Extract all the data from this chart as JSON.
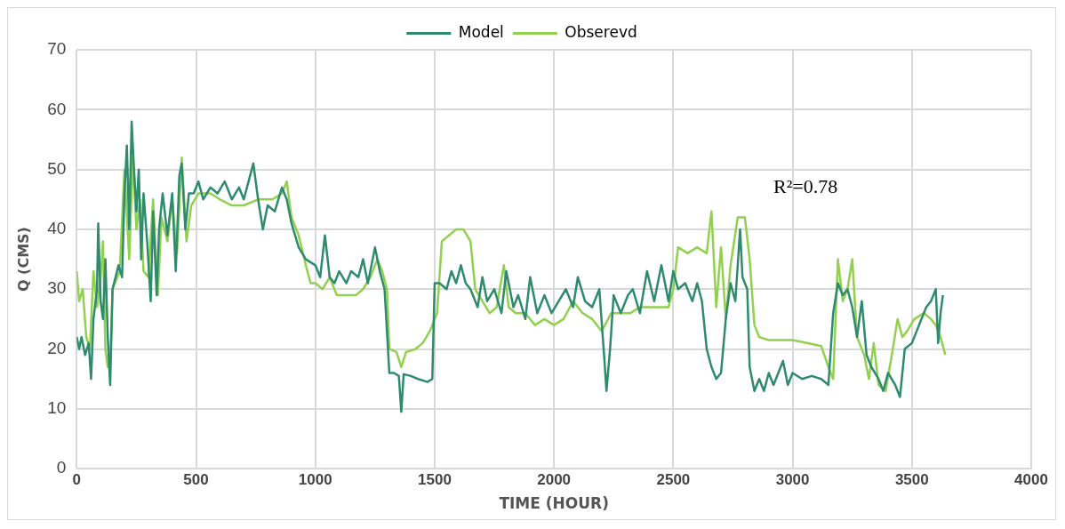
{
  "chart_data": {
    "type": "line",
    "xlabel": "TIME (HOUR)",
    "ylabel": "Q (CMS)",
    "xlim": [
      0,
      4000
    ],
    "xticks": [
      0,
      500,
      1000,
      1500,
      2000,
      2500,
      3000,
      3500,
      4000
    ],
    "ylim": [
      0,
      70
    ],
    "yticks": [
      0,
      10,
      20,
      30,
      40,
      50,
      60,
      70
    ],
    "grid": true,
    "legend": "top",
    "marker": "none",
    "line_style": "solid",
    "annotations": [
      "R²=0.78"
    ],
    "series": [
      {
        "name": "Model",
        "color": "#2e8b6e",
        "x": [
          0,
          10,
          20,
          35,
          50,
          60,
          70,
          85,
          90,
          100,
          110,
          120,
          130,
          140,
          150,
          175,
          190,
          200,
          210,
          220,
          230,
          240,
          250,
          260,
          270,
          280,
          295,
          310,
          320,
          335,
          345,
          360,
          380,
          400,
          415,
          430,
          440,
          455,
          470,
          490,
          510,
          530,
          560,
          590,
          620,
          650,
          680,
          700,
          720,
          740,
          760,
          780,
          800,
          830,
          860,
          880,
          900,
          930,
          960,
          1000,
          1020,
          1040,
          1060,
          1080,
          1100,
          1130,
          1150,
          1180,
          1200,
          1220,
          1250,
          1270,
          1290,
          1310,
          1330,
          1350,
          1360,
          1370,
          1400,
          1430,
          1470,
          1490,
          1500,
          1520,
          1550,
          1570,
          1590,
          1610,
          1630,
          1650,
          1680,
          1700,
          1720,
          1750,
          1780,
          1800,
          1830,
          1850,
          1880,
          1900,
          1930,
          1960,
          1990,
          2020,
          2050,
          2080,
          2100,
          2130,
          2160,
          2190,
          2210,
          2220,
          2235,
          2250,
          2280,
          2310,
          2330,
          2360,
          2390,
          2420,
          2450,
          2480,
          2500,
          2520,
          2550,
          2580,
          2600,
          2620,
          2640,
          2660,
          2680,
          2700,
          2720,
          2740,
          2760,
          2780,
          2790,
          2810,
          2820,
          2840,
          2860,
          2880,
          2900,
          2920,
          2940,
          2960,
          2980,
          3000,
          3040,
          3080,
          3120,
          3150,
          3170,
          3190,
          3210,
          3230,
          3250,
          3270,
          3290,
          3310,
          3330,
          3360,
          3380,
          3400,
          3430,
          3450,
          3470,
          3500,
          3530,
          3560,
          3580,
          3600,
          3610,
          3620,
          3630
        ],
        "values": [
          22,
          20,
          22,
          19,
          21,
          15,
          25,
          30,
          41,
          28,
          25,
          35,
          22,
          14,
          30,
          34,
          32,
          46,
          54,
          40,
          58,
          50,
          43,
          50,
          35,
          46,
          38,
          28,
          43,
          29,
          40,
          46,
          39,
          46,
          33,
          49,
          51,
          40,
          46,
          46,
          48,
          45,
          47,
          46,
          48,
          45,
          47,
          45,
          48,
          51,
          45,
          40,
          44,
          43,
          47,
          45,
          41,
          37,
          35,
          34,
          32,
          39,
          32,
          31,
          33,
          31,
          33,
          32,
          35,
          31,
          37,
          33,
          30,
          16,
          16,
          15.5,
          9.5,
          15.8,
          15.5,
          15,
          14.5,
          15,
          31,
          31,
          30,
          33,
          31,
          34,
          31,
          30,
          27,
          32,
          28,
          30,
          26,
          33,
          27,
          29,
          25,
          32,
          26,
          29,
          26,
          28,
          30,
          27,
          32,
          28,
          27,
          30,
          19,
          13,
          20,
          29,
          26,
          29,
          30,
          26,
          33,
          28,
          34,
          28,
          33,
          30,
          31,
          28,
          31,
          28,
          20,
          17,
          15,
          16,
          25,
          31,
          28,
          40,
          32,
          30,
          17,
          13,
          15,
          13,
          16,
          14,
          16,
          18,
          14,
          16,
          15,
          15.5,
          15,
          14,
          26,
          31,
          29,
          30,
          27,
          22,
          28,
          19,
          17,
          15,
          13,
          16,
          14,
          12,
          20,
          21,
          24,
          27,
          28,
          30,
          21,
          26,
          29
        ]
      },
      {
        "name": "Obserevd",
        "color": "#92d050",
        "x": [
          0,
          10,
          25,
          40,
          55,
          70,
          85,
          100,
          110,
          120,
          130,
          140,
          150,
          180,
          200,
          220,
          235,
          250,
          265,
          280,
          300,
          320,
          340,
          355,
          380,
          400,
          420,
          440,
          460,
          480,
          510,
          560,
          600,
          650,
          700,
          760,
          820,
          860,
          880,
          900,
          930,
          960,
          980,
          1000,
          1030,
          1060,
          1090,
          1130,
          1170,
          1200,
          1230,
          1260,
          1280,
          1300,
          1310,
          1340,
          1360,
          1380,
          1420,
          1450,
          1480,
          1510,
          1530,
          1560,
          1590,
          1620,
          1650,
          1670,
          1700,
          1730,
          1760,
          1790,
          1810,
          1840,
          1880,
          1920,
          1960,
          2000,
          2040,
          2080,
          2120,
          2160,
          2200,
          2240,
          2280,
          2320,
          2360,
          2400,
          2440,
          2480,
          2500,
          2520,
          2560,
          2600,
          2640,
          2660,
          2680,
          2700,
          2720,
          2740,
          2770,
          2800,
          2820,
          2840,
          2860,
          2900,
          2950,
          3000,
          3060,
          3120,
          3150,
          3170,
          3190,
          3210,
          3230,
          3250,
          3270,
          3300,
          3320,
          3340,
          3360,
          3390,
          3420,
          3440,
          3460,
          3480,
          3510,
          3550,
          3580,
          3600,
          3620,
          3640
        ],
        "values": [
          33,
          28,
          30,
          22,
          20,
          33,
          27,
          32,
          38,
          20,
          17,
          17,
          30,
          33,
          50,
          35,
          52,
          40,
          45,
          33,
          32,
          45,
          29,
          42,
          38,
          45,
          36,
          52,
          38,
          44,
          46,
          46,
          45,
          44,
          44,
          45,
          45,
          46,
          48,
          42,
          39,
          34,
          31,
          31,
          30,
          32,
          29,
          29,
          29,
          30,
          32,
          35,
          33,
          30,
          20,
          19.5,
          17,
          19.5,
          20,
          21,
          23,
          26,
          38,
          39,
          40,
          40,
          38,
          30,
          28,
          26,
          27,
          34,
          27,
          26,
          26,
          24,
          25,
          24,
          25,
          28,
          26,
          25,
          23,
          26,
          26,
          26,
          27,
          27,
          27,
          27,
          30,
          37,
          36,
          37,
          36,
          43,
          27,
          37,
          25,
          34,
          42,
          42,
          35,
          24,
          22,
          21.5,
          21.5,
          21.5,
          21,
          20.5,
          17,
          15,
          35,
          28,
          30,
          35,
          22,
          19,
          15,
          21,
          14,
          13,
          20,
          25,
          22,
          23,
          25,
          26,
          25,
          24,
          22,
          19
        ]
      }
    ]
  }
}
